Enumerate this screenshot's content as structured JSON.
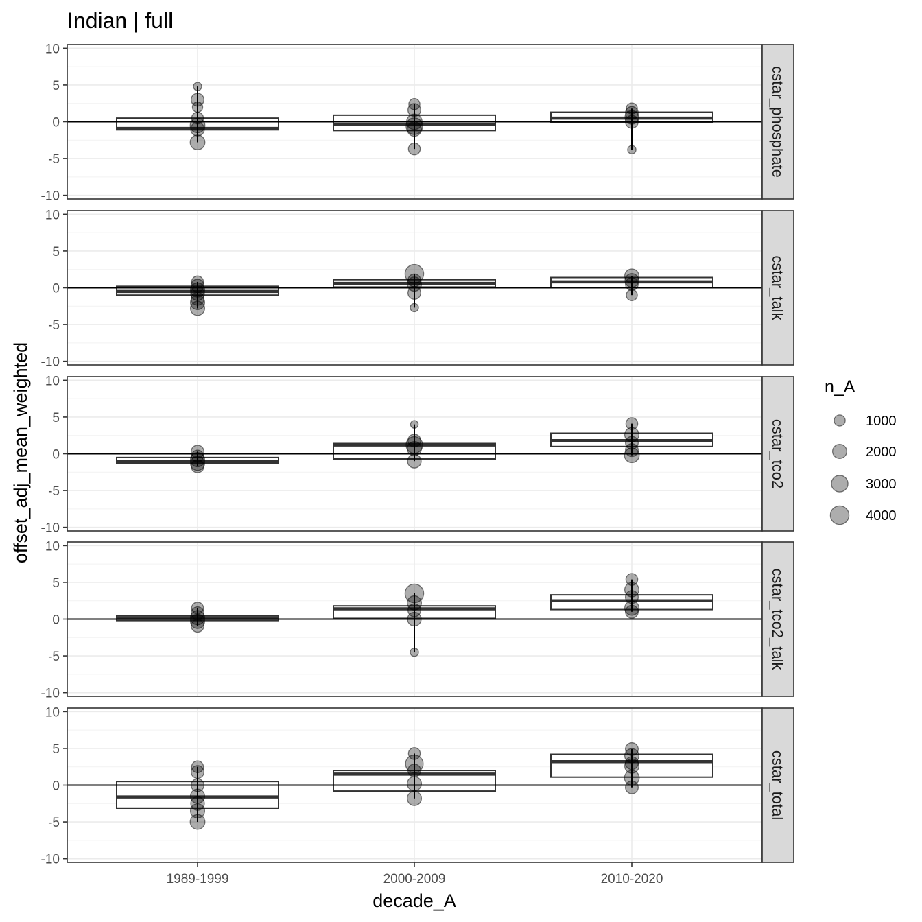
{
  "chart_data": {
    "type": "boxplot",
    "title": "Indian | full",
    "xlabel": "decade_A",
    "ylabel": "offset_adj_mean_weighted",
    "categories": [
      "1989-1999",
      "2000-2009",
      "2010-2020"
    ],
    "ylim": [
      -10.5,
      10.5
    ],
    "y_ticks": [
      10,
      5,
      0,
      -5,
      -10
    ],
    "y_tick_labels": [
      "10",
      "5",
      "0",
      "-5",
      "-10"
    ],
    "reference_line_y": 0,
    "grid": true,
    "legend": {
      "title": "n_A",
      "position": "right",
      "sizes": [
        1000,
        2000,
        3000,
        4000
      ],
      "labels": [
        "1000",
        "2000",
        "3000",
        "4000"
      ]
    },
    "panels": [
      {
        "name": "cstar_phosphate",
        "boxes": [
          {
            "category": "1989-1999",
            "q1": -1.1,
            "median": -0.9,
            "q3": 0.5
          },
          {
            "category": "2000-2009",
            "q1": -1.2,
            "median": -0.4,
            "q3": 0.9
          },
          {
            "category": "2010-2020",
            "q1": -0.1,
            "median": 0.5,
            "q3": 1.3
          }
        ],
        "points": [
          {
            "category": "1989-1999",
            "y": 4.8,
            "n": 400
          },
          {
            "category": "1989-1999",
            "y": 3.0,
            "n": 1500
          },
          {
            "category": "1989-1999",
            "y": 2.0,
            "n": 800
          },
          {
            "category": "1989-1999",
            "y": 0.5,
            "n": 1200
          },
          {
            "category": "1989-1999",
            "y": -0.5,
            "n": 2200
          },
          {
            "category": "1989-1999",
            "y": -1.0,
            "n": 1800
          },
          {
            "category": "1989-1999",
            "y": -2.8,
            "n": 2200
          },
          {
            "category": "2000-2009",
            "y": 2.4,
            "n": 1000
          },
          {
            "category": "2000-2009",
            "y": 1.6,
            "n": 1500
          },
          {
            "category": "2000-2009",
            "y": 0.0,
            "n": 2500
          },
          {
            "category": "2000-2009",
            "y": -0.6,
            "n": 3000
          },
          {
            "category": "2000-2009",
            "y": -1.0,
            "n": 2000
          },
          {
            "category": "2000-2009",
            "y": -3.7,
            "n": 1200
          },
          {
            "category": "2010-2020",
            "y": 1.8,
            "n": 1000
          },
          {
            "category": "2010-2020",
            "y": 1.2,
            "n": 1500
          },
          {
            "category": "2010-2020",
            "y": 0.6,
            "n": 1800
          },
          {
            "category": "2010-2020",
            "y": 0.0,
            "n": 1500
          },
          {
            "category": "2010-2020",
            "y": -3.8,
            "n": 400
          }
        ]
      },
      {
        "name": "cstar_talk",
        "boxes": [
          {
            "category": "1989-1999",
            "q1": -1.0,
            "median": -0.5,
            "q3": 0.2
          },
          {
            "category": "2000-2009",
            "q1": 0.1,
            "median": 0.6,
            "q3": 1.1
          },
          {
            "category": "2010-2020",
            "q1": 0.0,
            "median": 0.8,
            "q3": 1.4
          }
        ],
        "points": [
          {
            "category": "1989-1999",
            "y": 0.8,
            "n": 1200
          },
          {
            "category": "1989-1999",
            "y": 0.3,
            "n": 1500
          },
          {
            "category": "1989-1999",
            "y": -0.3,
            "n": 2000
          },
          {
            "category": "1989-1999",
            "y": -0.8,
            "n": 1800
          },
          {
            "category": "1989-1999",
            "y": -1.5,
            "n": 1500
          },
          {
            "category": "1989-1999",
            "y": -2.0,
            "n": 2000
          },
          {
            "category": "1989-1999",
            "y": -2.8,
            "n": 2000
          },
          {
            "category": "2000-2009",
            "y": 1.9,
            "n": 4000
          },
          {
            "category": "2000-2009",
            "y": 1.0,
            "n": 1500
          },
          {
            "category": "2000-2009",
            "y": 0.5,
            "n": 2000
          },
          {
            "category": "2000-2009",
            "y": -0.7,
            "n": 1500
          },
          {
            "category": "2000-2009",
            "y": -2.7,
            "n": 400
          },
          {
            "category": "2010-2020",
            "y": 1.6,
            "n": 2000
          },
          {
            "category": "2010-2020",
            "y": 1.0,
            "n": 1800
          },
          {
            "category": "2010-2020",
            "y": 0.5,
            "n": 1500
          },
          {
            "category": "2010-2020",
            "y": -1.0,
            "n": 1000
          }
        ]
      },
      {
        "name": "cstar_tco2",
        "boxes": [
          {
            "category": "1989-1999",
            "q1": -1.3,
            "median": -1.1,
            "q3": -0.5
          },
          {
            "category": "2000-2009",
            "q1": -0.7,
            "median": 1.2,
            "q3": 1.4
          },
          {
            "category": "2010-2020",
            "q1": 1.0,
            "median": 1.8,
            "q3": 2.8
          }
        ],
        "points": [
          {
            "category": "1989-1999",
            "y": 0.3,
            "n": 1500
          },
          {
            "category": "1989-1999",
            "y": -0.3,
            "n": 1200
          },
          {
            "category": "1989-1999",
            "y": -0.8,
            "n": 2000
          },
          {
            "category": "1989-1999",
            "y": -1.3,
            "n": 2000
          },
          {
            "category": "1989-1999",
            "y": -1.7,
            "n": 1500
          },
          {
            "category": "2000-2009",
            "y": 4.0,
            "n": 300
          },
          {
            "category": "2000-2009",
            "y": 1.8,
            "n": 1500
          },
          {
            "category": "2000-2009",
            "y": 1.2,
            "n": 3000
          },
          {
            "category": "2000-2009",
            "y": 0.7,
            "n": 2000
          },
          {
            "category": "2000-2009",
            "y": -1.0,
            "n": 1800
          },
          {
            "category": "2010-2020",
            "y": 4.1,
            "n": 1200
          },
          {
            "category": "2010-2020",
            "y": 2.6,
            "n": 2000
          },
          {
            "category": "2010-2020",
            "y": 1.5,
            "n": 1500
          },
          {
            "category": "2010-2020",
            "y": 0.5,
            "n": 1500
          },
          {
            "category": "2010-2020",
            "y": -0.2,
            "n": 2200
          }
        ]
      },
      {
        "name": "cstar_tco2_talk",
        "boxes": [
          {
            "category": "1989-1999",
            "q1": -0.2,
            "median": 0.2,
            "q3": 0.5
          },
          {
            "category": "2000-2009",
            "q1": 0.1,
            "median": 1.4,
            "q3": 1.8
          },
          {
            "category": "2010-2020",
            "q1": 1.3,
            "median": 2.5,
            "q3": 3.3
          }
        ],
        "points": [
          {
            "category": "1989-1999",
            "y": 1.5,
            "n": 1200
          },
          {
            "category": "1989-1999",
            "y": 0.8,
            "n": 1500
          },
          {
            "category": "1989-1999",
            "y": 0.2,
            "n": 2000
          },
          {
            "category": "1989-1999",
            "y": -0.3,
            "n": 2000
          },
          {
            "category": "1989-1999",
            "y": -0.9,
            "n": 1500
          },
          {
            "category": "2000-2009",
            "y": 3.5,
            "n": 4000
          },
          {
            "category": "2000-2009",
            "y": 2.2,
            "n": 2000
          },
          {
            "category": "2000-2009",
            "y": 1.2,
            "n": 1500
          },
          {
            "category": "2000-2009",
            "y": 0.0,
            "n": 1800
          },
          {
            "category": "2000-2009",
            "y": -4.5,
            "n": 400
          },
          {
            "category": "2010-2020",
            "y": 5.4,
            "n": 1200
          },
          {
            "category": "2010-2020",
            "y": 4.0,
            "n": 2000
          },
          {
            "category": "2010-2020",
            "y": 3.0,
            "n": 1500
          },
          {
            "category": "2010-2020",
            "y": 1.5,
            "n": 2000
          },
          {
            "category": "2010-2020",
            "y": 1.0,
            "n": 1500
          }
        ]
      },
      {
        "name": "cstar_total",
        "boxes": [
          {
            "category": "1989-1999",
            "q1": -3.2,
            "median": -1.6,
            "q3": 0.5
          },
          {
            "category": "2000-2009",
            "q1": -0.8,
            "median": 1.5,
            "q3": 2.0
          },
          {
            "category": "2010-2020",
            "q1": 1.1,
            "median": 3.2,
            "q3": 4.2
          }
        ],
        "points": [
          {
            "category": "1989-1999",
            "y": 2.5,
            "n": 1200
          },
          {
            "category": "1989-1999",
            "y": 1.8,
            "n": 1500
          },
          {
            "category": "1989-1999",
            "y": 0.0,
            "n": 1500
          },
          {
            "category": "1989-1999",
            "y": -1.5,
            "n": 2000
          },
          {
            "category": "1989-1999",
            "y": -2.5,
            "n": 1800
          },
          {
            "category": "1989-1999",
            "y": -3.5,
            "n": 2000
          },
          {
            "category": "1989-1999",
            "y": -5.0,
            "n": 2200
          },
          {
            "category": "2000-2009",
            "y": 4.3,
            "n": 1200
          },
          {
            "category": "2000-2009",
            "y": 2.9,
            "n": 3500
          },
          {
            "category": "2000-2009",
            "y": 2.0,
            "n": 1500
          },
          {
            "category": "2000-2009",
            "y": 0.2,
            "n": 2000
          },
          {
            "category": "2000-2009",
            "y": -1.8,
            "n": 2000
          },
          {
            "category": "2010-2020",
            "y": 4.9,
            "n": 1500
          },
          {
            "category": "2010-2020",
            "y": 4.0,
            "n": 2000
          },
          {
            "category": "2010-2020",
            "y": 3.0,
            "n": 1500
          },
          {
            "category": "2010-2020",
            "y": 2.6,
            "n": 2000
          },
          {
            "category": "2010-2020",
            "y": 1.0,
            "n": 2200
          },
          {
            "category": "2010-2020",
            "y": -0.3,
            "n": 1500
          }
        ]
      }
    ]
  }
}
